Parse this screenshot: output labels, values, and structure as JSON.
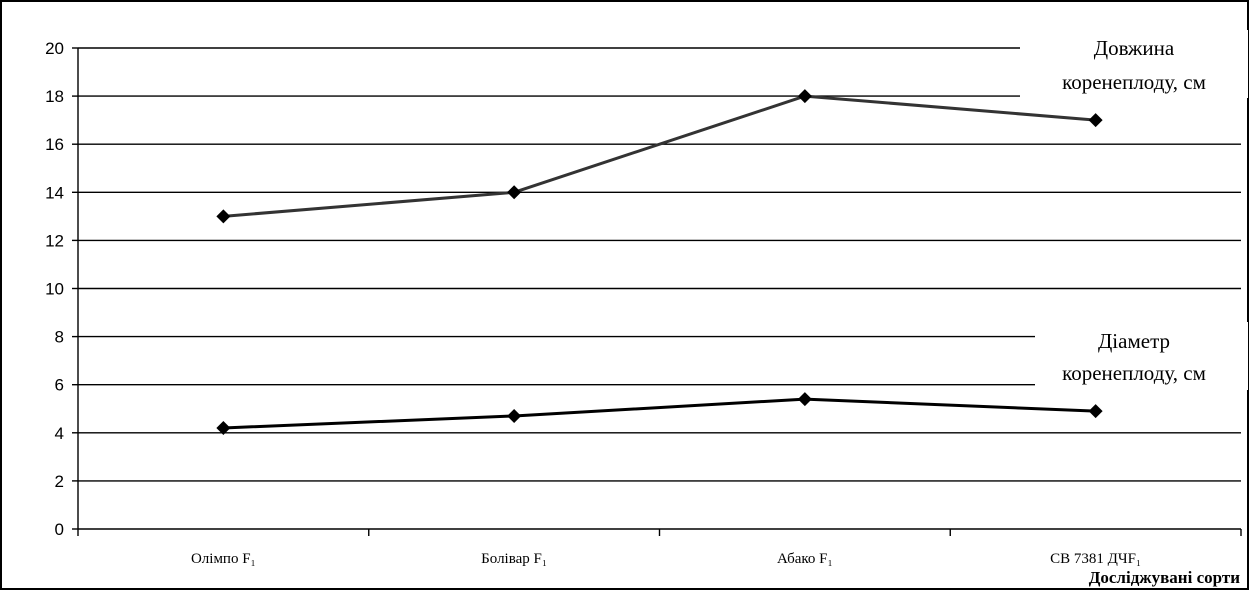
{
  "chart_data": {
    "type": "line",
    "categories": [
      "Олімпо F₁",
      "Болівар F₁",
      "Абако F₁",
      "СВ 7381 ДЧF₁"
    ],
    "series": [
      {
        "name": "Довжина коренеплоду, см",
        "name_lines": [
          "Довжина",
          "коренеплоду, см"
        ],
        "values": [
          13,
          14,
          18,
          17
        ],
        "color": "#333333"
      },
      {
        "name": "Діаметр коренеплоду, см",
        "name_lines": [
          "Діаметр",
          "коренеплоду, см"
        ],
        "values": [
          4.2,
          4.7,
          5.4,
          4.9
        ],
        "color": "#000000"
      }
    ],
    "xlabel": "Досліджувані сорти",
    "ylabel": "",
    "ylim": [
      0,
      20
    ],
    "yticks": [
      0,
      2,
      4,
      6,
      8,
      10,
      12,
      14,
      16,
      18,
      20
    ],
    "grid": true,
    "marker": "diamond"
  }
}
